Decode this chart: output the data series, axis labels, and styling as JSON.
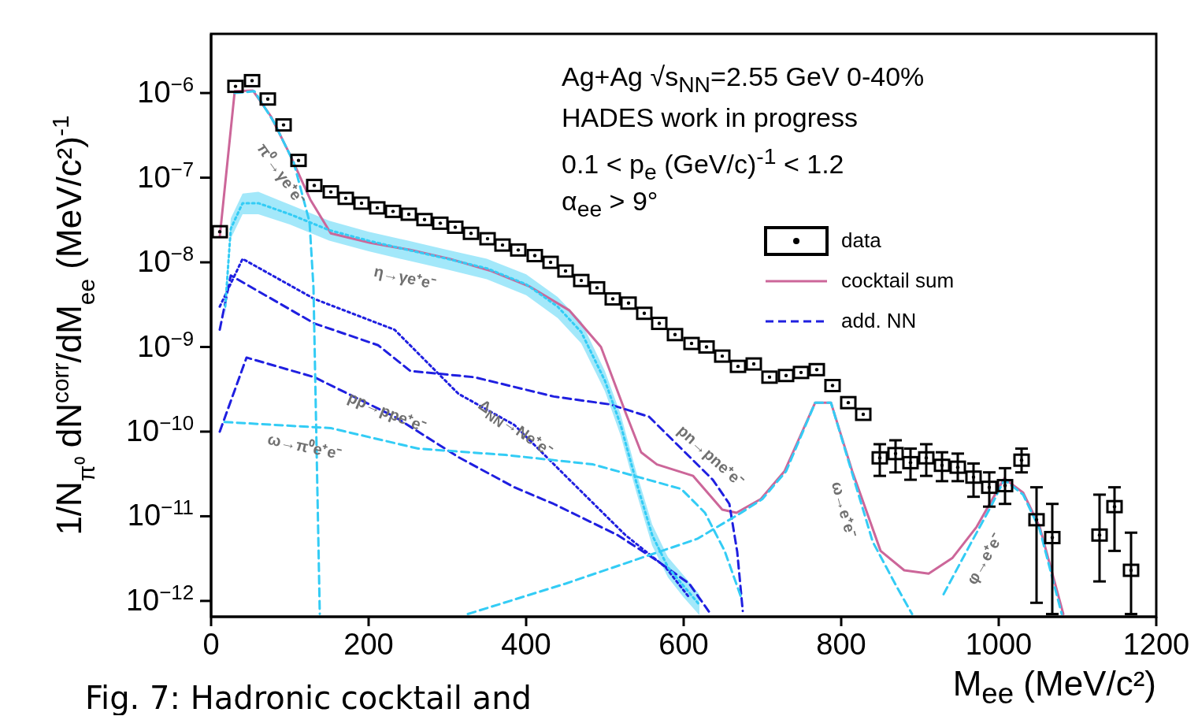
{
  "chart_data": {
    "type": "line",
    "xlabel": "M$_{ee}$ (MeV/c²)",
    "ylabel": "1/N$_{π⁰}$ dN$^{corr}$/dM$_{ee}$ (MeV/c²)$^{-1}$",
    "xlim": [
      0,
      1200
    ],
    "xticks": [
      0,
      200,
      400,
      600,
      800,
      1000,
      1200
    ],
    "ylim": [
      6.5e-13,
      5e-06
    ],
    "yticks": [
      {
        "value": 1e-12,
        "label": "10$^{−12}$"
      },
      {
        "value": 1e-11,
        "label": "10$^{−11}$"
      },
      {
        "value": 1e-10,
        "label": "10$^{−10}$"
      },
      {
        "value": 1e-09,
        "label": "10$^{−9}$"
      },
      {
        "value": 1e-08,
        "label": "10$^{−8}$"
      },
      {
        "value": 1e-07,
        "label": "10$^{−7}$"
      },
      {
        "value": 1e-06,
        "label": "10$^{−6}$"
      }
    ],
    "log": "y",
    "grid": false,
    "legend": "top right",
    "annotations": [
      "Ag+Ag √s$_{NN}$=2.55 GeV 0-40%",
      "HADES work in progress",
      "0.1 < p$_{e}$ (GeV/c)$^{-1}$ < 1.2",
      "α$_{ee}$ > 9°",
      "Fig. 7: Hadronic cocktail and",
      "π⁰→γe⁺e⁻",
      "η→γe⁺e⁻",
      "pp→ppe⁺e⁻",
      "Δ$_{NN}$→Ne⁺e⁻",
      "ω→π⁰e⁺e⁻",
      "pn→pne⁺e⁻",
      "ω→e⁺e⁻",
      "φ→e⁺e⁻"
    ],
    "series": [
      {
        "name": "data",
        "type": "scatter",
        "color": "#000000",
        "marker": "square",
        "x": [
          11,
          31,
          52,
          72,
          92,
          111,
          131,
          152,
          171,
          191,
          211,
          231,
          251,
          271,
          291,
          310,
          330,
          351,
          370,
          390,
          411,
          431,
          450,
          470,
          490,
          510,
          530,
          550,
          569,
          589,
          610,
          629,
          649,
          669,
          689,
          709,
          730,
          749,
          769,
          789,
          809,
          828,
          849,
          869,
          888,
          908,
          928,
          948,
          968,
          988,
          1008,
          1029,
          1048,
          1068,
          1128,
          1147,
          1168
        ],
        "values": [
          2.3e-08,
          1.2e-06,
          1.4e-06,
          8.5e-07,
          4.2e-07,
          1.6e-07,
          8.1e-08,
          6.8e-08,
          5.7e-08,
          5e-08,
          4.4e-08,
          4e-08,
          3.7e-08,
          3.2e-08,
          2.9e-08,
          2.6e-08,
          2.2e-08,
          1.9e-08,
          1.6e-08,
          1.4e-08,
          1.2e-08,
          1e-08,
          7.9e-09,
          6.1e-09,
          5e-09,
          3.7e-09,
          3.3e-09,
          2.5e-09,
          1.9e-09,
          1.4e-09,
          1.1e-09,
          1e-09,
          7.8e-10,
          5.9e-10,
          6.3e-10,
          4.4e-10,
          4.6e-10,
          5e-10,
          5.4e-10,
          3.5e-10,
          2.2e-10,
          1.6e-10,
          4.9e-11,
          5.5e-11,
          4.3e-11,
          4.9e-11,
          4e-11,
          3.8e-11,
          2.9e-11,
          2.2e-11,
          2.3e-11,
          4.6e-11,
          9.1e-12,
          5.6e-12,
          6e-12,
          1.3e-11,
          2.3e-12
        ],
        "errors": [
          null,
          null,
          null,
          null,
          null,
          null,
          null,
          null,
          null,
          null,
          null,
          null,
          null,
          null,
          null,
          null,
          null,
          null,
          null,
          null,
          null,
          null,
          null,
          null,
          null,
          null,
          null,
          null,
          null,
          null,
          null,
          null,
          null,
          null,
          null,
          null,
          null,
          null,
          null,
          null,
          null,
          null,
          [
            3e-11,
            7.1e-11
          ],
          [
            3.3e-11,
            7.9e-11
          ],
          [
            2.7e-11,
            6.3e-11
          ],
          [
            3e-11,
            7.1e-11
          ],
          [
            2.6e-11,
            5.7e-11
          ],
          [
            2.6e-11,
            5.5e-11
          ],
          [
            1.7e-11,
            4.2e-11
          ],
          [
            1.3e-11,
            3.3e-11
          ],
          [
            1.4e-11,
            3.7e-11
          ],
          [
            3.3e-11,
            6.3e-11
          ],
          [
            9.5e-13,
            2.2e-11
          ],
          [
            7e-13,
            1.4e-11
          ],
          [
            1.7e-12,
            1.8e-11
          ],
          [
            3.9e-12,
            2.2e-11
          ],
          [
            7e-13,
            6.4e-12
          ]
        ]
      },
      {
        "name": "cocktail sum",
        "color": "#cc6699",
        "line_style": "solid",
        "x": [
          11,
          30,
          53,
          76,
          101,
          126,
          152,
          202,
          253,
          303,
          354,
          404,
          455,
          495,
          526,
          546,
          566,
          612,
          649,
          667,
          698,
          728,
          767,
          787,
          814,
          850,
          880,
          911,
          941,
          972,
          1007,
          1031,
          1052,
          1082
        ],
        "values": [
          2e-08,
          1.05e-06,
          1.07e-06,
          5.3e-07,
          1.8e-07,
          5.5e-08,
          2.2e-08,
          1.7e-08,
          1.4e-08,
          1.1e-08,
          8e-09,
          5.2e-09,
          2.7e-09,
          1e-09,
          1.7e-10,
          5.7e-11,
          4.1e-11,
          3e-11,
          1.2e-11,
          1.1e-11,
          1.6e-11,
          3.4e-11,
          2.2e-10,
          2.2e-10,
          3.4e-11,
          3.9e-12,
          2.3e-12,
          2.1e-12,
          3.2e-12,
          7.5e-12,
          2.8e-11,
          1.9e-11,
          7.5e-12,
          7e-13
        ]
      },
      {
        "name": "add. NN",
        "color": "#1f1fe0",
        "line_style": "dashed",
        "x": [
          11,
          25,
          131,
          212,
          253,
          334,
          435,
          506,
          556,
          597,
          637,
          658,
          668,
          675
        ],
        "values": [
          1.6e-09,
          7e-09,
          1.9e-09,
          1.05e-09,
          5.2e-10,
          4.4e-10,
          2.6e-10,
          2.1e-10,
          1.5e-10,
          6.3e-11,
          2.7e-11,
          1.4e-11,
          3.8e-12,
          7.6e-13
        ]
      },
      {
        "type": "line",
        "color": "#1f1fe0",
        "line_style": "dashed",
        "x": [
          11,
          45,
          131,
          233,
          314,
          385,
          435,
          516,
          566,
          607,
          632
        ],
        "values": [
          1e-10,
          7.5e-10,
          4.4e-10,
          1.5e-10,
          5e-11,
          2.2e-11,
          1.4e-11,
          6e-12,
          3e-12,
          1.6e-12,
          7.5e-13
        ]
      },
      {
        "type": "line",
        "color": "#1f1fe0",
        "line_style": "dotted",
        "x": [
          11,
          40,
          131,
          233,
          314,
          385,
          455,
          526,
          577,
          607
        ],
        "values": [
          3e-09,
          1.1e-08,
          3.7e-09,
          1.6e-09,
          2.8e-10,
          1.2e-10,
          2.7e-11,
          6e-12,
          2.5e-12,
          1.1e-12
        ]
      },
      {
        "type": "line",
        "color": "#33ccf5",
        "line_style": "dotted",
        "x": [
          18,
          25,
          40,
          60,
          100,
          150,
          200,
          250,
          300,
          350,
          400,
          440,
          470,
          500,
          520,
          540,
          560,
          580,
          600,
          620
        ],
        "values": [
          3e-09,
          2.5e-08,
          5e-08,
          5e-08,
          3.7e-08,
          2.4e-08,
          1.8e-08,
          1.4e-08,
          1.1e-08,
          8.5e-09,
          5.5e-09,
          3e-09,
          1.5e-09,
          4e-10,
          1.2e-10,
          2.5e-11,
          6e-12,
          2.5e-12,
          1.5e-12,
          9e-13
        ],
        "lower": [
          2.2e-09,
          1.9e-08,
          3.7e-08,
          3.7e-08,
          2.8e-08,
          1.8e-08,
          1.35e-08,
          1.05e-08,
          8.2e-09,
          6.3e-09,
          4.1e-09,
          2.2e-09,
          1.1e-09,
          3e-10,
          9e-11,
          1.9e-11,
          4.5e-12,
          1.9e-12,
          1.1e-12,
          6.8e-13
        ],
        "upper": [
          4e-09,
          3.3e-08,
          6.5e-08,
          6.8e-08,
          4.8e-08,
          3.1e-08,
          2.3e-08,
          1.8e-08,
          1.4e-08,
          1.1e-08,
          7.2e-09,
          3.9e-09,
          2e-09,
          5.2e-10,
          1.6e-10,
          3.3e-11,
          8e-12,
          3.3e-12,
          2e-12,
          1.2e-12
        ]
      },
      {
        "type": "line",
        "color": "#33ccf5",
        "line_style": "dashed",
        "x": [
          30,
          55,
          80,
          105,
          125,
          130,
          138
        ],
        "values": [
          1e-06,
          1.05e-06,
          4.5e-07,
          1.5e-07,
          3e-08,
          5e-09,
          7e-13
        ]
      },
      {
        "type": "line",
        "color": "#33ccf5",
        "line_style": "dashed",
        "x": [
          17,
          152,
          263,
          374,
          485,
          597,
          627,
          652,
          673
        ],
        "values": [
          1.3e-10,
          1.1e-10,
          6.3e-11,
          5.3e-11,
          4.1e-11,
          2.1e-11,
          1.1e-11,
          3.9e-12,
          1.1e-12
        ]
      },
      {
        "type": "line",
        "color": "#33ccf5",
        "line_style": "dashed",
        "x": [
          326,
          450,
          617,
          673,
          700,
          730,
          767,
          787,
          814,
          840,
          870,
          890
        ],
        "values": [
          7e-13,
          1.6e-12,
          5.4e-12,
          1.1e-11,
          1.6e-11,
          3.4e-11,
          2.2e-10,
          2.2e-10,
          3.2e-11,
          5e-12,
          1.5e-12,
          7e-13
        ]
      },
      {
        "type": "line",
        "color": "#33ccf5",
        "line_style": "dashed",
        "x": [
          930,
          960,
          990,
          1007,
          1031,
          1052,
          1080
        ],
        "values": [
          1.2e-12,
          4e-12,
          1.3e-11,
          2.7e-11,
          1.8e-11,
          7e-12,
          7e-13
        ]
      }
    ]
  }
}
